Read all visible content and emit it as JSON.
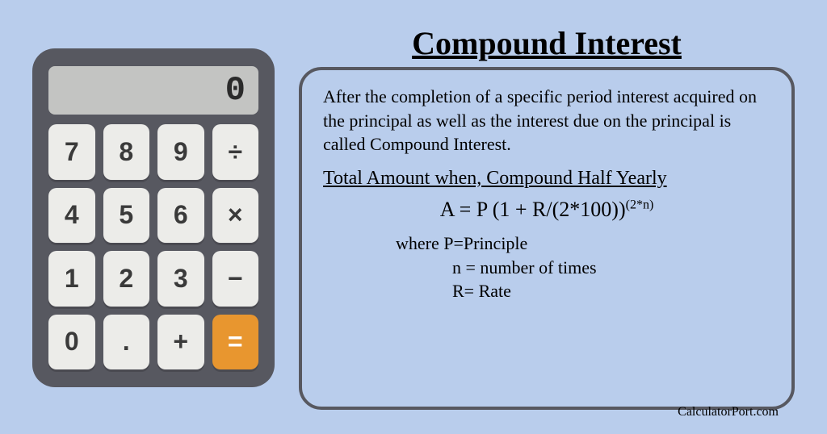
{
  "page": {
    "background_color": "#b9cdec"
  },
  "calculator": {
    "body_color": "#575860",
    "display": {
      "value": "0",
      "bg_color": "#c3c4c2"
    },
    "keys": {
      "row1": [
        "7",
        "8",
        "9",
        "÷"
      ],
      "row2": [
        "4",
        "5",
        "6",
        "×"
      ],
      "row3": [
        "1",
        "2",
        "3",
        "−"
      ],
      "row4": [
        "0",
        ".",
        "+",
        "="
      ],
      "key_bg": "#ecece9",
      "equals_bg": "#e8962f",
      "equals_fg": "#ffffff"
    }
  },
  "info": {
    "title": "Compound Interest",
    "description": "After the completion of a specific period interest acquired on the principal as well as the interest due on the principal is called Compound Interest.",
    "subtitle": "Total Amount when, Compound Half Yearly",
    "formula_base": "A = P (1 + R/(2*100))",
    "formula_exponent": "(2*n)",
    "where_label": "where P=Principle",
    "where_n": "n = number of times",
    "where_r": "R= Rate",
    "box_border_color": "#575860"
  },
  "footer": {
    "text": "CalculatorPort.com"
  }
}
